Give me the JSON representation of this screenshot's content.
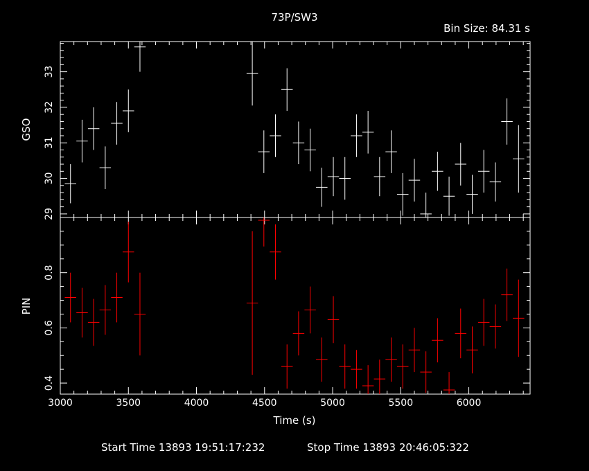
{
  "title": "73P/SW3",
  "bin_size": "Bin Size: 84.31 s",
  "xlabel": "Time (s)",
  "footer": {
    "start": "Start Time 13893 19:51:17:232",
    "stop": "Stop Time 13893 20:46:05:322"
  },
  "colors": {
    "background": "#000000",
    "axes": "#ffffff",
    "gso": "#ffffff",
    "pin": "#ff0000"
  },
  "chart_data": [
    {
      "type": "scatter",
      "name": "GSO",
      "ylabel": "GSO",
      "xlim": [
        3000,
        6450
      ],
      "ylim": [
        28.9,
        33.85
      ],
      "x_ticks": [
        3000,
        3500,
        4000,
        4500,
        5000,
        5500,
        6000
      ],
      "y_ticks": [
        29,
        30,
        31,
        32,
        33
      ],
      "half_bin": 42,
      "color": "#ffffff",
      "x": [
        3075,
        3160,
        3245,
        3330,
        3415,
        3500,
        3585,
        4410,
        4495,
        4580,
        4665,
        4750,
        4835,
        4920,
        5005,
        5090,
        5175,
        5260,
        5345,
        5430,
        5515,
        5600,
        5685,
        5770,
        5855,
        5940,
        6025,
        6110,
        6195,
        6280,
        6365
      ],
      "y": [
        29.85,
        31.05,
        31.4,
        30.3,
        31.55,
        31.9,
        33.7,
        32.95,
        30.75,
        31.2,
        32.5,
        31.0,
        30.8,
        29.75,
        30.05,
        30.0,
        31.2,
        31.3,
        30.05,
        30.75,
        29.55,
        29.95,
        29.0,
        30.2,
        29.5,
        30.4,
        29.55,
        30.2,
        29.9,
        31.6,
        30.55
      ],
      "yerr": [
        0.55,
        0.6,
        0.6,
        0.6,
        0.6,
        0.6,
        0.7,
        0.9,
        0.6,
        0.6,
        0.6,
        0.6,
        0.6,
        0.55,
        0.55,
        0.6,
        0.6,
        0.6,
        0.55,
        0.6,
        0.6,
        0.6,
        0.6,
        0.55,
        0.55,
        0.6,
        0.55,
        0.6,
        0.55,
        0.65,
        0.95
      ]
    },
    {
      "type": "scatter",
      "name": "PIN",
      "ylabel": "PIN",
      "xlim": [
        3000,
        6450
      ],
      "ylim": [
        0.36,
        1.0
      ],
      "x_ticks": [
        3000,
        3500,
        4000,
        4500,
        5000,
        5500,
        6000
      ],
      "x_tick_labels": [
        "3000",
        "3500",
        "4000",
        "4500",
        "5000",
        "5500",
        "6000"
      ],
      "y_ticks": [
        0.4,
        0.6,
        0.8
      ],
      "y_tick_labels": [
        "0.4",
        "0.6",
        "0.8"
      ],
      "half_bin": 42,
      "color": "#ff0000",
      "x": [
        3075,
        3160,
        3245,
        3330,
        3415,
        3500,
        3585,
        4410,
        4495,
        4580,
        4665,
        4750,
        4835,
        4920,
        5005,
        5090,
        5175,
        5260,
        5345,
        5430,
        5515,
        5600,
        5685,
        5770,
        5855,
        5940,
        6025,
        6110,
        6195,
        6280,
        6365
      ],
      "y": [
        0.71,
        0.655,
        0.62,
        0.665,
        0.71,
        0.875,
        0.65,
        0.69,
        0.99,
        0.875,
        0.46,
        0.58,
        0.665,
        0.485,
        0.63,
        0.46,
        0.45,
        0.39,
        0.415,
        0.485,
        0.46,
        0.52,
        0.44,
        0.555,
        0.375,
        0.58,
        0.52,
        0.62,
        0.605,
        0.72,
        0.635
      ],
      "yerr": [
        0.09,
        0.09,
        0.085,
        0.09,
        0.09,
        0.11,
        0.15,
        0.26,
        0.095,
        0.1,
        0.08,
        0.08,
        0.085,
        0.08,
        0.085,
        0.08,
        0.07,
        0.075,
        0.07,
        0.08,
        0.08,
        0.08,
        0.075,
        0.08,
        0.065,
        0.09,
        0.085,
        0.085,
        0.08,
        0.095,
        0.14
      ]
    }
  ]
}
